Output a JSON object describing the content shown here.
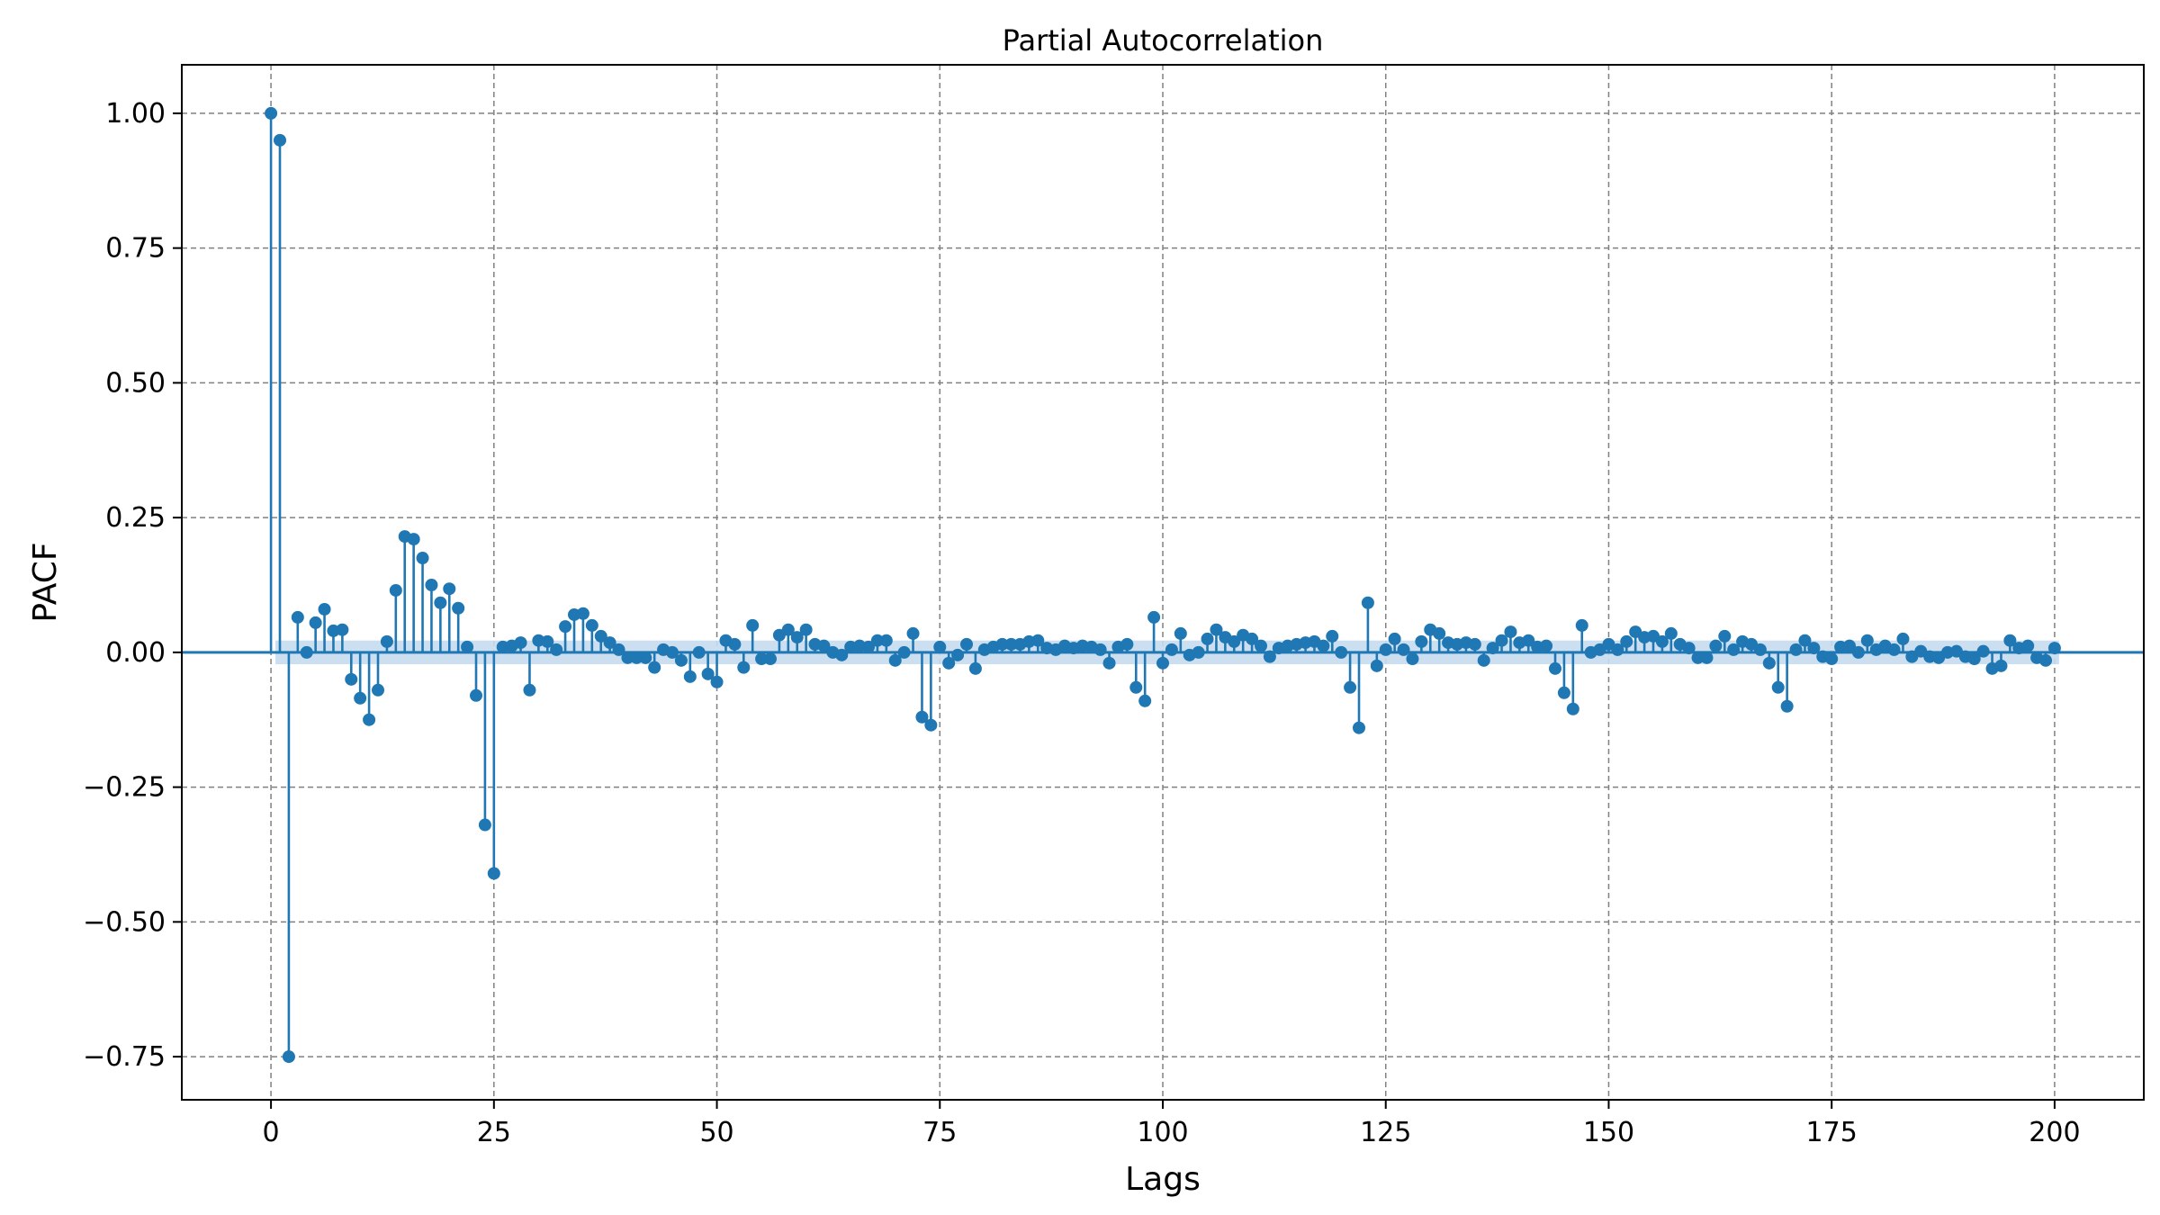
{
  "chart_data": {
    "type": "stem",
    "title": "Partial Autocorrelation",
    "xlabel": "Lags",
    "ylabel": "PACF",
    "xlim": [
      -10,
      210
    ],
    "ylim": [
      -0.83,
      1.09
    ],
    "xticks": [
      0,
      25,
      50,
      75,
      100,
      125,
      150,
      175,
      200
    ],
    "yticks": [
      -0.75,
      -0.5,
      -0.25,
      0.0,
      0.25,
      0.5,
      0.75,
      1.0
    ],
    "ytick_labels": [
      "−0.75",
      "−0.50",
      "−0.25",
      "0.00",
      "0.25",
      "0.50",
      "0.75",
      "1.00"
    ],
    "grid": true,
    "colors": {
      "stem": "#1f77b4",
      "confidence_band": "#c6dbef",
      "grid": "#808080"
    },
    "confidence_interval": 0.022,
    "series": [
      {
        "values": [
          1.0,
          0.95,
          -0.75,
          0.065,
          0.0,
          0.055,
          0.08,
          0.04,
          0.042,
          -0.05,
          -0.085,
          -0.125,
          -0.07,
          0.02,
          0.115,
          0.215,
          0.21,
          0.175,
          0.125,
          0.092,
          0.118,
          0.082,
          0.01,
          -0.08,
          -0.32,
          -0.41,
          0.01,
          0.012,
          0.018,
          -0.07,
          0.022,
          0.02,
          0.005,
          0.048,
          0.07,
          0.072,
          0.05,
          0.03,
          0.018,
          0.005,
          -0.01,
          -0.01,
          -0.01,
          -0.028,
          0.005,
          0.0,
          -0.015,
          -0.045,
          0.0,
          -0.04,
          -0.055,
          0.022,
          0.015,
          -0.028,
          0.05,
          -0.012,
          -0.012,
          0.032,
          0.042,
          0.028,
          0.042,
          0.015,
          0.012,
          0.0,
          -0.005,
          0.01,
          0.012,
          0.01,
          0.022,
          0.022,
          -0.015,
          0.0,
          0.035,
          -0.12,
          -0.135,
          0.01,
          -0.02,
          -0.005,
          0.015,
          -0.03,
          0.005,
          0.01,
          0.015,
          0.015,
          0.015,
          0.02,
          0.022,
          0.008,
          0.005,
          0.012,
          0.008,
          0.012,
          0.01,
          0.005,
          -0.02,
          0.01,
          0.015,
          -0.065,
          -0.09,
          0.065,
          -0.02,
          0.005,
          0.035,
          -0.005,
          0.0,
          0.025,
          0.042,
          0.028,
          0.02,
          0.032,
          0.025,
          0.012,
          -0.008,
          0.008,
          0.012,
          0.015,
          0.018,
          0.02,
          0.012,
          0.03,
          0.0,
          -0.065,
          -0.14,
          0.092,
          -0.025,
          0.005,
          0.025,
          0.005,
          -0.012,
          0.02,
          0.042,
          0.035,
          0.018,
          0.015,
          0.018,
          0.015,
          -0.015,
          0.008,
          0.022,
          0.038,
          0.018,
          0.022,
          0.01,
          0.012,
          -0.03,
          -0.075,
          -0.105,
          0.05,
          0.0,
          0.005,
          0.015,
          0.005,
          0.02,
          0.038,
          0.028,
          0.03,
          0.02,
          0.035,
          0.015,
          0.008,
          -0.01,
          -0.01,
          0.012,
          0.03,
          0.005,
          0.02,
          0.015,
          0.005,
          -0.02,
          -0.065,
          -0.1,
          0.005,
          0.022,
          0.008,
          -0.008,
          -0.012,
          0.01,
          0.012,
          0.0,
          0.022,
          0.005,
          0.012,
          0.005,
          0.025,
          -0.008,
          0.002,
          -0.008,
          -0.01,
          0.0,
          0.002,
          -0.008,
          -0.012,
          0.002,
          -0.03,
          -0.025,
          0.022,
          0.008,
          0.012,
          -0.01,
          -0.015,
          0.008
        ]
      }
    ]
  }
}
